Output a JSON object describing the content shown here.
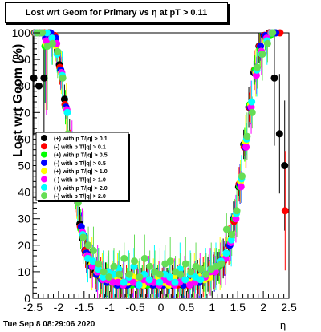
{
  "chart_data": {
    "type": "scatter",
    "title": "Lost wrt Geom for Primary vs   η at pT > 0.11",
    "xlabel": "η",
    "ylabel": "Lost wrt Geom (%)",
    "xlim": [
      -2.5,
      2.5
    ],
    "ylim": [
      0,
      100
    ],
    "xticks": [
      "-2.5",
      "-2",
      "-1.5",
      "-1",
      "-0.5",
      "0",
      "0.5",
      "1",
      "1.5",
      "2",
      "2.5"
    ],
    "yticks": [
      "0",
      "10",
      "20",
      "30",
      "40",
      "50",
      "60",
      "70",
      "80",
      "90",
      "100"
    ],
    "legend_position": "center-left",
    "timestamp": "Tue Sep  8 08:29:06 2020",
    "series": [
      {
        "name": "(+) with p T/|q| > 0.1",
        "color": "#000000",
        "x": [
          -2.45,
          -2.35,
          -2.25,
          -2.15,
          -2.05,
          -1.95,
          -1.85,
          -1.75,
          -1.65,
          -1.55,
          -1.45,
          -1.35,
          -1.25,
          -1.15,
          -1.05,
          -0.95,
          -0.85,
          -0.75,
          -0.65,
          -0.55,
          -0.45,
          -0.35,
          -0.25,
          -0.15,
          -0.05,
          0.05,
          0.15,
          0.25,
          0.35,
          0.45,
          0.55,
          0.65,
          0.75,
          0.85,
          0.95,
          1.05,
          1.15,
          1.25,
          1.35,
          1.45,
          1.55,
          1.65,
          1.75,
          1.85,
          1.95,
          2.05,
          2.15,
          2.25,
          2.35,
          2.45
        ],
        "y": [
          83,
          80,
          83,
          100,
          98,
          88,
          75,
          60,
          40,
          28,
          18,
          13,
          10,
          8,
          7,
          6,
          6,
          5,
          5,
          6,
          7,
          6,
          5,
          6,
          5,
          5,
          6,
          5,
          6,
          5,
          6,
          6,
          7,
          8,
          9,
          10,
          12,
          15,
          20,
          30,
          42,
          58,
          72,
          85,
          95,
          99,
          100,
          83,
          62,
          50
        ]
      },
      {
        "name": "(-) with p T/|q| > 0.1",
        "color": "#ff0000",
        "x": [
          -2.45,
          -2.35,
          -2.25,
          -2.15,
          -2.05,
          -1.95,
          -1.85,
          -1.75,
          -1.65,
          -1.55,
          -1.45,
          -1.35,
          -1.25,
          -1.15,
          -1.05,
          -0.95,
          -0.85,
          -0.75,
          -0.65,
          -0.55,
          -0.45,
          -0.35,
          -0.25,
          -0.15,
          -0.05,
          0.05,
          0.15,
          0.25,
          0.35,
          0.45,
          0.55,
          0.65,
          0.75,
          0.85,
          0.95,
          1.05,
          1.15,
          1.25,
          1.35,
          1.45,
          1.55,
          1.65,
          1.75,
          1.85,
          1.95,
          2.05,
          2.15,
          2.25,
          2.35,
          2.45
        ],
        "y": [
          100,
          100,
          100,
          100,
          99,
          87,
          73,
          58,
          40,
          27,
          18,
          12,
          9,
          8,
          7,
          6,
          5,
          6,
          5,
          6,
          6,
          5,
          6,
          5,
          6,
          5,
          5,
          6,
          5,
          6,
          5,
          7,
          7,
          8,
          9,
          10,
          12,
          14,
          20,
          29,
          43,
          57,
          72,
          86,
          95,
          99,
          100,
          100,
          100,
          33
        ]
      },
      {
        "name": "(+) with p T/|q| > 0.5",
        "color": "#00ff00",
        "x": [
          -2.45,
          -2.35,
          -2.25,
          -2.15,
          -2.05,
          -1.95,
          -1.85,
          -1.75,
          -1.65,
          -1.55,
          -1.45,
          -1.35,
          -1.25,
          -1.15,
          -1.05,
          -0.95,
          -0.85,
          -0.75,
          -0.65,
          -0.55,
          -0.45,
          -0.35,
          -0.25,
          -0.15,
          -0.05,
          0.05,
          0.15,
          0.25,
          0.35,
          0.45,
          0.55,
          0.65,
          0.75,
          0.85,
          0.95,
          1.05,
          1.15,
          1.25,
          1.35,
          1.45,
          1.55,
          1.65,
          1.75,
          1.85,
          1.95,
          2.05,
          2.15,
          2.25
        ],
        "y": [
          100,
          100,
          95,
          100,
          97,
          86,
          72,
          57,
          39,
          26,
          17,
          12,
          9,
          7,
          6,
          6,
          5,
          5,
          6,
          5,
          6,
          6,
          5,
          6,
          5,
          6,
          5,
          6,
          6,
          5,
          6,
          6,
          7,
          8,
          9,
          11,
          12,
          15,
          21,
          30,
          42,
          58,
          73,
          86,
          94,
          98,
          99,
          100
        ]
      },
      {
        "name": "(-) with p T/|q| > 0.5",
        "color": "#0000ff",
        "x": [
          -2.45,
          -2.35,
          -2.25,
          -2.15,
          -2.05,
          -1.95,
          -1.85,
          -1.75,
          -1.65,
          -1.55,
          -1.45,
          -1.35,
          -1.25,
          -1.15,
          -1.05,
          -0.95,
          -0.85,
          -0.75,
          -0.65,
          -0.55,
          -0.45,
          -0.35,
          -0.25,
          -0.15,
          -0.05,
          0.05,
          0.15,
          0.25,
          0.35,
          0.45,
          0.55,
          0.65,
          0.75,
          0.85,
          0.95,
          1.05,
          1.15,
          1.25,
          1.35,
          1.45,
          1.55,
          1.65,
          1.75,
          1.85,
          1.95,
          2.05,
          2.15,
          2.25
        ],
        "y": [
          100,
          100,
          98,
          100,
          98,
          86,
          72,
          58,
          40,
          27,
          17,
          12,
          9,
          7,
          6,
          6,
          5,
          5,
          5,
          6,
          5,
          5,
          6,
          5,
          6,
          5,
          6,
          5,
          6,
          5,
          6,
          7,
          6,
          8,
          9,
          10,
          13,
          15,
          20,
          31,
          43,
          57,
          72,
          85,
          95,
          99,
          100,
          100
        ]
      },
      {
        "name": "(+) with p T/|q| > 1.0",
        "color": "#ffff00",
        "x": [
          -2.45,
          -2.35,
          -2.25,
          -2.15,
          -2.05,
          -1.95,
          -1.85,
          -1.75,
          -1.65,
          -1.55,
          -1.45,
          -1.35,
          -1.25,
          -1.15,
          -1.05,
          -0.95,
          -0.85,
          -0.75,
          -0.65,
          -0.55,
          -0.45,
          -0.35,
          -0.25,
          -0.15,
          -0.05,
          0.05,
          0.15,
          0.25,
          0.35,
          0.45,
          0.55,
          0.65,
          0.75,
          0.85,
          0.95,
          1.05,
          1.15,
          1.25,
          1.35,
          1.45,
          1.55,
          1.65,
          1.75,
          1.85,
          1.95,
          2.05,
          2.15
        ],
        "y": [
          100,
          100,
          96,
          97,
          95,
          85,
          71,
          56,
          39,
          25,
          16,
          13,
          10,
          8,
          7,
          6,
          7,
          6,
          6,
          8,
          6,
          5,
          7,
          6,
          8,
          6,
          5,
          8,
          6,
          7,
          6,
          7,
          8,
          7,
          8,
          11,
          13,
          16,
          22,
          31,
          44,
          59,
          73,
          85,
          93,
          97,
          100
        ]
      },
      {
        "name": "(-) with p T/|q| > 1.0",
        "color": "#ff00ff",
        "x": [
          -2.45,
          -2.35,
          -2.25,
          -2.15,
          -2.05,
          -1.95,
          -1.85,
          -1.75,
          -1.65,
          -1.55,
          -1.45,
          -1.35,
          -1.25,
          -1.15,
          -1.05,
          -0.95,
          -0.85,
          -0.75,
          -0.65,
          -0.55,
          -0.45,
          -0.35,
          -0.25,
          -0.15,
          -0.05,
          0.05,
          0.15,
          0.25,
          0.35,
          0.45,
          0.55,
          0.65,
          0.75,
          0.85,
          0.95,
          1.05,
          1.15,
          1.25,
          1.35,
          1.45,
          1.55,
          1.65,
          1.75,
          1.85,
          1.95,
          2.05,
          2.15
        ],
        "y": [
          100,
          100,
          97,
          98,
          96,
          85,
          71,
          57,
          38,
          25,
          16,
          12,
          10,
          7,
          7,
          6,
          6,
          5,
          7,
          6,
          5,
          7,
          6,
          6,
          5,
          7,
          6,
          5,
          6,
          7,
          5,
          6,
          7,
          8,
          10,
          10,
          13,
          15,
          21,
          30,
          42,
          57,
          72,
          84,
          93,
          98,
          100
        ]
      },
      {
        "name": "(+) with p T/|q| > 2.0",
        "color": "#00ffff",
        "x": [
          -2.45,
          -2.35,
          -2.25,
          -2.15,
          -2.05,
          -1.95,
          -1.85,
          -1.75,
          -1.65,
          -1.55,
          -1.45,
          -1.35,
          -1.25,
          -1.15,
          -1.05,
          -0.95,
          -0.85,
          -0.75,
          -0.65,
          -0.55,
          -0.45,
          -0.35,
          -0.25,
          -0.15,
          -0.05,
          0.05,
          0.15,
          0.25,
          0.35,
          0.45,
          0.55,
          0.65,
          0.75,
          0.85,
          0.95,
          1.05,
          1.15,
          1.25,
          1.35,
          1.45,
          1.55,
          1.65,
          1.75,
          1.85,
          1.95,
          2.05,
          2.15
        ],
        "y": [
          100,
          100,
          100,
          98,
          92,
          84,
          70,
          55,
          37,
          24,
          15,
          14,
          11,
          8,
          10,
          9,
          11,
          6,
          8,
          12,
          5,
          9,
          7,
          10,
          6,
          9,
          8,
          6,
          11,
          7,
          9,
          8,
          7,
          9,
          11,
          12,
          14,
          17,
          22,
          32,
          45,
          60,
          74,
          86,
          92,
          97,
          100
        ]
      },
      {
        "name": "(-) with p T/|q| > 2.0",
        "color": "#66dd55",
        "x": [
          -2.45,
          -2.35,
          -2.25,
          -2.15,
          -2.05,
          -1.95,
          -1.85,
          -1.75,
          -1.65,
          -1.55,
          -1.45,
          -1.35,
          -1.25,
          -1.15,
          -1.05,
          -0.95,
          -0.85,
          -0.75,
          -0.65,
          -0.55,
          -0.45,
          -0.35,
          -0.25,
          -0.15,
          -0.05,
          0.05,
          0.15,
          0.25,
          0.35,
          0.45,
          0.55,
          0.65,
          0.75,
          0.85,
          0.95,
          1.05,
          1.15,
          1.25,
          1.35,
          1.45,
          1.55,
          1.65,
          1.75,
          1.85,
          1.95,
          2.05,
          2.15
        ],
        "y": [
          100,
          100,
          95,
          96,
          93,
          83,
          62,
          52,
          36,
          23,
          20,
          18,
          13,
          10,
          8,
          12,
          9,
          15,
          9,
          14,
          8,
          15,
          12,
          10,
          9,
          13,
          14,
          10,
          9,
          13,
          10,
          12,
          11,
          9,
          11,
          12,
          13,
          26,
          24,
          33,
          46,
          61,
          70,
          87,
          92,
          96,
          100
        ]
      }
    ]
  }
}
